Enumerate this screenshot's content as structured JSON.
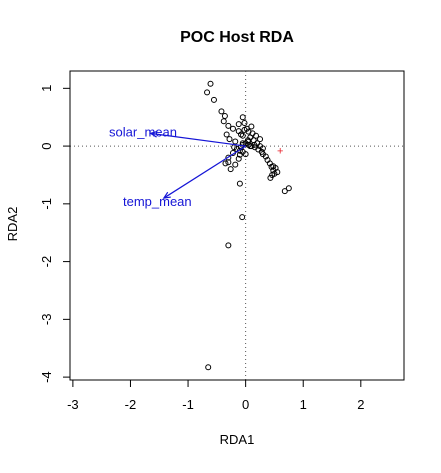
{
  "chart_data": {
    "type": "scatter",
    "title": "POC Host RDA",
    "xlabel": "RDA1",
    "ylabel": "RDA2",
    "xlim": [
      -3.05,
      2.75
    ],
    "ylim": [
      -4.05,
      1.3
    ],
    "xticks": [
      -3,
      -2,
      -1,
      0,
      1,
      2
    ],
    "yticks": [
      -4,
      -3,
      -2,
      -1,
      0,
      1
    ],
    "grid": false,
    "reference_lines": {
      "x": 0,
      "y": 0,
      "style": "dotted"
    },
    "points": {
      "marker": "open-circle",
      "color": "#000000",
      "x": [
        -0.61,
        -0.67,
        -0.55,
        -0.42,
        -0.36,
        -0.38,
        -0.3,
        -0.22,
        -0.12,
        -0.05,
        -0.02,
        0.02,
        0.05,
        -0.08,
        0.12,
        0.18,
        0.25,
        -0.33,
        -0.28,
        -0.18,
        -0.05,
        0.05,
        0.1,
        0.16,
        0.22,
        0.28,
        0.3,
        0.35,
        0.38,
        0.42,
        0.45,
        0.48,
        0.5,
        0.46,
        0.52,
        0.43,
        0.55,
        0.48,
        -0.15,
        -0.08,
        -0.22,
        -0.3,
        -0.35,
        -0.26,
        -0.18,
        -0.12,
        -0.1,
        -0.05,
        0.0,
        0.04,
        0.08,
        0.14,
        0.2,
        0.25,
        0.3,
        -0.02,
        0.1,
        -0.12,
        -0.05,
        0.05,
        -0.2,
        -0.1,
        0.15,
        -0.3,
        0.0,
        -0.1,
        -0.05,
        0.08,
        0.68,
        0.75,
        -0.06,
        -0.3,
        -0.65
      ],
      "y": [
        1.08,
        0.93,
        0.8,
        0.6,
        0.52,
        0.43,
        0.35,
        0.3,
        0.38,
        0.5,
        0.4,
        0.3,
        0.25,
        0.2,
        0.22,
        0.18,
        0.12,
        0.2,
        0.12,
        0.08,
        0.05,
        0.02,
        0.0,
        -0.02,
        -0.06,
        -0.1,
        -0.14,
        -0.18,
        -0.24,
        -0.3,
        -0.36,
        -0.42,
        -0.48,
        -0.5,
        -0.38,
        -0.55,
        -0.45,
        -0.35,
        -0.05,
        -0.02,
        -0.12,
        -0.2,
        -0.3,
        -0.4,
        -0.32,
        -0.22,
        -0.15,
        -0.1,
        0.05,
        0.1,
        0.15,
        0.1,
        0.05,
        0.0,
        -0.04,
        0.28,
        0.34,
        0.26,
        0.18,
        0.08,
        -0.02,
        -0.08,
        0.02,
        -0.28,
        -0.14,
        -0.65,
        0.02,
        0.0,
        -0.78,
        -0.73,
        -1.23,
        -1.72,
        -3.83
      ]
    },
    "centroid": {
      "x": 0.6,
      "y": -0.08,
      "marker": "+",
      "color": "#e8202a"
    },
    "vectors": [
      {
        "label": "solar_mean",
        "x": -1.65,
        "y": 0.22,
        "color": "#1515d6"
      },
      {
        "label": "temp_mean",
        "x": -1.42,
        "y": -0.9,
        "color": "#1515d6"
      }
    ]
  }
}
